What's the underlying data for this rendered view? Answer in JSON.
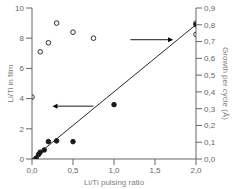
{
  "chart_data": {
    "type": "scatter",
    "xlabel": "Li/Ti pulsing ratio",
    "ylabel": "Li/Ti in film",
    "y2label": "Growth per cycle (Å)",
    "xlim": [
      0,
      2.0
    ],
    "ylim": [
      0,
      10
    ],
    "y2lim": [
      0.0,
      0.9
    ],
    "xticks": [
      {
        "value": 0.0,
        "label": "0,0"
      },
      {
        "value": 0.5,
        "label": "0,5"
      },
      {
        "value": 1.0,
        "label": "1,0"
      },
      {
        "value": 1.5,
        "label": "1,5"
      },
      {
        "value": 2.0,
        "label": "2,0"
      }
    ],
    "yticks": [
      0,
      2,
      4,
      6,
      8,
      10
    ],
    "y2ticks": [
      {
        "value": 0.0,
        "label": "0,0"
      },
      {
        "value": 0.1,
        "label": "0,1"
      },
      {
        "value": 0.2,
        "label": "0,2"
      },
      {
        "value": 0.3,
        "label": "0,3"
      },
      {
        "value": 0.4,
        "label": "0,4"
      },
      {
        "value": 0.5,
        "label": "0,5"
      },
      {
        "value": 0.6,
        "label": "0,6"
      },
      {
        "value": 0.7,
        "label": "0,7"
      },
      {
        "value": 0.8,
        "label": "0,8"
      },
      {
        "value": 0.9,
        "label": "0,9"
      }
    ],
    "grid": false,
    "series": [
      {
        "type": "line",
        "color": "#2a2a2a",
        "x": [
          0.0,
          2.0
        ],
        "values": [
          0.0,
          8.9
        ]
      },
      {
        "type": "scatter",
        "marker": "filled_circle",
        "color": "#1a1a1a",
        "x": [
          0.05,
          0.08,
          0.1,
          0.15,
          0.2,
          0.3,
          0.5,
          1.0,
          2.0
        ],
        "values": [
          0.05,
          0.3,
          0.45,
          0.6,
          1.15,
          1.2,
          1.15,
          3.6,
          8.9
        ]
      },
      {
        "type": "scatter",
        "marker": "open_circle",
        "color": "#1a1a1a",
        "x": [
          0.0
        ],
        "values": [
          4.1
        ]
      },
      {
        "type": "scatter",
        "marker": "open_circle",
        "color": "#1a1a1a",
        "x": [
          0.1,
          0.2,
          0.3,
          0.5,
          0.75,
          2.0,
          2.0
        ],
        "values": [
          7.1,
          7.7,
          9.0,
          8.4,
          8.0,
          8.25,
          9.0
        ]
      }
    ],
    "annotations": [
      {
        "type": "arrow",
        "x": 0.75,
        "y": 3.5,
        "x_tip": 0.25,
        "y_tip": 3.5
      },
      {
        "type": "arrow",
        "x": 1.2,
        "y": 7.9,
        "x_tip": 1.72,
        "y_tip": 7.9
      }
    ]
  }
}
